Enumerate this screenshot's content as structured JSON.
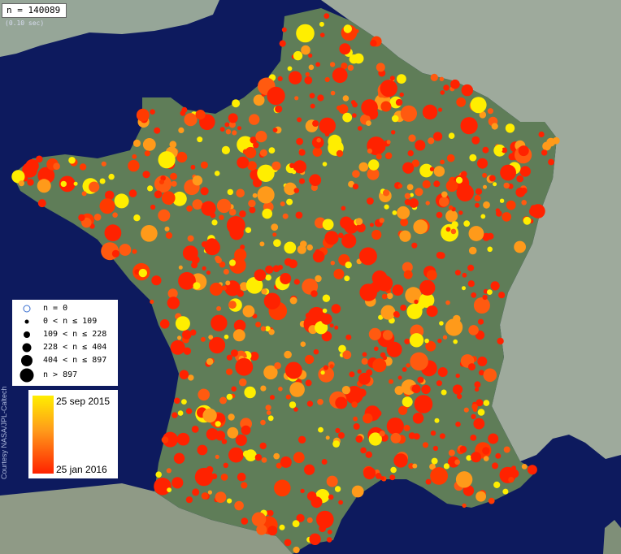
{
  "count_label": "n = 140089",
  "time_label": "(0.10 sec)",
  "credit": "Courtesy NASA/JPL-Caltech",
  "size_legend": [
    {
      "label": "n = 0",
      "marker": "circled-x-icon"
    },
    {
      "label": "0 < n ≤ 109",
      "marker": "dot-icon"
    },
    {
      "label": "109 < n ≤ 228",
      "marker": "dot-icon"
    },
    {
      "label": "228 < n ≤ 404",
      "marker": "dot-icon"
    },
    {
      "label": "404 < n ≤ 897",
      "marker": "dot-icon"
    },
    {
      "label": "n > 897",
      "marker": "dot-icon"
    }
  ],
  "color_legend": {
    "top_label": "25 sep 2015",
    "bottom_label": "25 jan 2016",
    "top_color": "#ffee00",
    "mid_color": "#ff9a1a",
    "bottom_color": "#ff2200"
  },
  "colors": {
    "sea": "#0d1a5e",
    "land": "#5f7d58",
    "neighbor_land": "#9aa89a"
  }
}
